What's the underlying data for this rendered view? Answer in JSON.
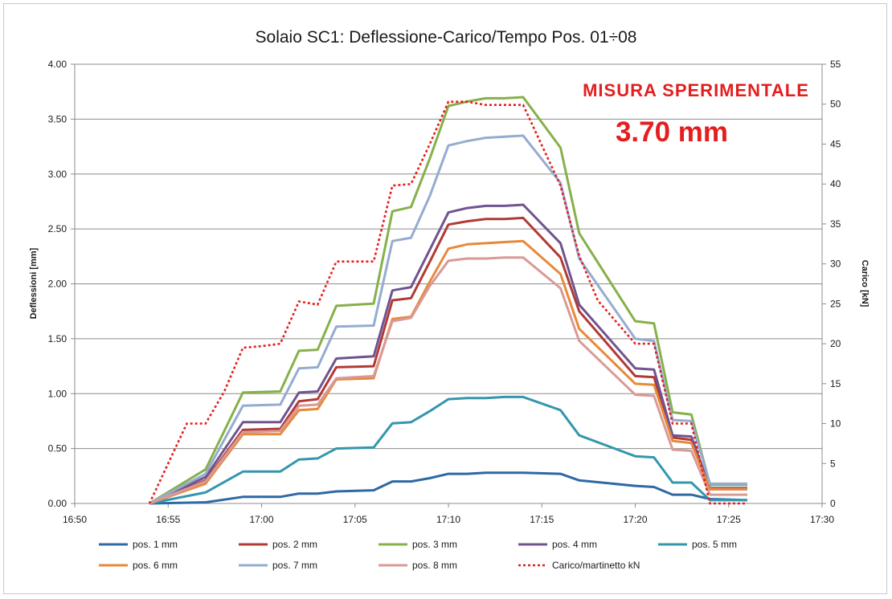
{
  "chart_data": {
    "type": "line",
    "title": "Solaio SC1: Deflessione-Carico/Tempo Pos. 01÷08",
    "ylabel": "Deflessioni [mm]",
    "y2label": "Carico [kN]",
    "ylim": [
      0,
      4
    ],
    "y2lim": [
      0,
      55
    ],
    "xlim": [
      "16:50",
      "17:30"
    ],
    "x_ticks": [
      "16:50",
      "16:55",
      "17:00",
      "17:05",
      "17:10",
      "17:15",
      "17:20",
      "17:25",
      "17:30"
    ],
    "y_ticks": [
      "0.00",
      "0.50",
      "1.00",
      "1.50",
      "2.00",
      "2.50",
      "3.00",
      "3.50",
      "4.00"
    ],
    "y2_ticks": [
      "0",
      "5",
      "10",
      "15",
      "20",
      "25",
      "30",
      "35",
      "40",
      "45",
      "50",
      "55"
    ],
    "grid": "horizontal",
    "legend_position": "bottom",
    "x": [
      "16:54",
      "16:57",
      "16:59",
      "17:01",
      "17:02",
      "17:03",
      "17:04",
      "17:06",
      "17:07",
      "17:08",
      "17:09",
      "17:10",
      "17:11",
      "17:12",
      "17:13",
      "17:14",
      "17:16",
      "17:17",
      "17:20",
      "17:21",
      "17:22",
      "17:23",
      "17:24",
      "17:26"
    ],
    "series": [
      {
        "name": "pos. 1 mm",
        "color": "#2e68a5",
        "style": "solid",
        "axis": "left",
        "values": [
          0.0,
          0.01,
          0.06,
          0.06,
          0.09,
          0.09,
          0.11,
          0.12,
          0.2,
          0.2,
          0.23,
          0.27,
          0.27,
          0.28,
          0.28,
          0.28,
          0.27,
          0.21,
          0.16,
          0.15,
          0.08,
          0.08,
          0.04,
          0.03
        ]
      },
      {
        "name": "pos. 2 mm",
        "color": "#b03a36",
        "style": "solid",
        "axis": "left",
        "values": [
          0.0,
          0.21,
          0.67,
          0.68,
          0.93,
          0.95,
          1.24,
          1.25,
          1.85,
          1.87,
          2.2,
          2.54,
          2.57,
          2.59,
          2.59,
          2.6,
          2.24,
          1.75,
          1.16,
          1.15,
          0.6,
          0.58,
          0.13,
          0.13
        ]
      },
      {
        "name": "pos. 3 mm",
        "color": "#86b04a",
        "style": "solid",
        "axis": "left",
        "values": [
          0.0,
          0.31,
          1.01,
          1.02,
          1.39,
          1.4,
          1.8,
          1.82,
          2.66,
          2.7,
          3.14,
          3.62,
          3.66,
          3.69,
          3.69,
          3.7,
          3.24,
          2.46,
          1.66,
          1.64,
          0.83,
          0.81,
          0.17,
          0.17
        ]
      },
      {
        "name": "pos. 4 mm",
        "color": "#70538f",
        "style": "solid",
        "axis": "left",
        "values": [
          0.0,
          0.24,
          0.74,
          0.74,
          1.01,
          1.02,
          1.32,
          1.34,
          1.94,
          1.97,
          2.31,
          2.65,
          2.69,
          2.71,
          2.71,
          2.72,
          2.37,
          1.81,
          1.23,
          1.22,
          0.62,
          0.61,
          0.14,
          0.14
        ]
      },
      {
        "name": "pos. 5 mm",
        "color": "#3496ae",
        "style": "solid",
        "axis": "left",
        "values": [
          0.0,
          0.1,
          0.29,
          0.29,
          0.4,
          0.41,
          0.5,
          0.51,
          0.73,
          0.74,
          0.84,
          0.95,
          0.96,
          0.96,
          0.97,
          0.97,
          0.85,
          0.62,
          0.43,
          0.42,
          0.19,
          0.19,
          0.03,
          0.03
        ]
      },
      {
        "name": "pos. 6 mm",
        "color": "#e8893a",
        "style": "solid",
        "axis": "left",
        "values": [
          0.0,
          0.18,
          0.63,
          0.63,
          0.85,
          0.86,
          1.13,
          1.14,
          1.68,
          1.7,
          2.02,
          2.32,
          2.36,
          2.37,
          2.38,
          2.39,
          2.09,
          1.59,
          1.09,
          1.08,
          0.57,
          0.55,
          0.13,
          0.13
        ]
      },
      {
        "name": "pos. 7 mm",
        "color": "#95acd0",
        "style": "solid",
        "axis": "left",
        "values": [
          0.0,
          0.27,
          0.89,
          0.9,
          1.23,
          1.24,
          1.61,
          1.62,
          2.39,
          2.42,
          2.8,
          3.26,
          3.3,
          3.33,
          3.34,
          3.35,
          2.92,
          2.23,
          1.5,
          1.48,
          0.76,
          0.75,
          0.18,
          0.18
        ]
      },
      {
        "name": "pos. 8 mm",
        "color": "#d89a97",
        "style": "solid",
        "axis": "left",
        "values": [
          0.0,
          0.2,
          0.65,
          0.66,
          0.89,
          0.9,
          1.14,
          1.16,
          1.66,
          1.69,
          1.98,
          2.21,
          2.23,
          2.23,
          2.24,
          2.24,
          1.96,
          1.48,
          0.99,
          0.98,
          0.49,
          0.48,
          0.08,
          0.08
        ]
      },
      {
        "name": "Carico/martinetto kN",
        "color": "#e41e1e",
        "style": "dotted",
        "axis": "right",
        "x": [
          "16:54",
          "16:56",
          "16:57",
          "16:58",
          "16:59",
          "17:00",
          "17:01",
          "17:02",
          "17:03",
          "17:04",
          "17:05",
          "17:06",
          "17:07",
          "17:08",
          "17:09",
          "17:10",
          "17:11",
          "17:12",
          "17:13",
          "17:14",
          "17:16",
          "17:17",
          "17:18",
          "17:20",
          "17:21",
          "17:22",
          "17:23",
          "17:24",
          "17:25",
          "17:26"
        ],
        "values": [
          0.0,
          10.0,
          10.0,
          14.0,
          19.5,
          19.7,
          20.0,
          25.3,
          24.9,
          30.3,
          30.3,
          30.3,
          39.8,
          40.0,
          45.0,
          50.3,
          50.3,
          49.9,
          49.9,
          49.9,
          39.8,
          31.0,
          25.4,
          20.0,
          20.0,
          10.0,
          10.0,
          0.0,
          0.0,
          0.0
        ]
      }
    ],
    "annotations": [
      "MISURA SPERIMENTALE",
      "3.70 mm"
    ]
  }
}
